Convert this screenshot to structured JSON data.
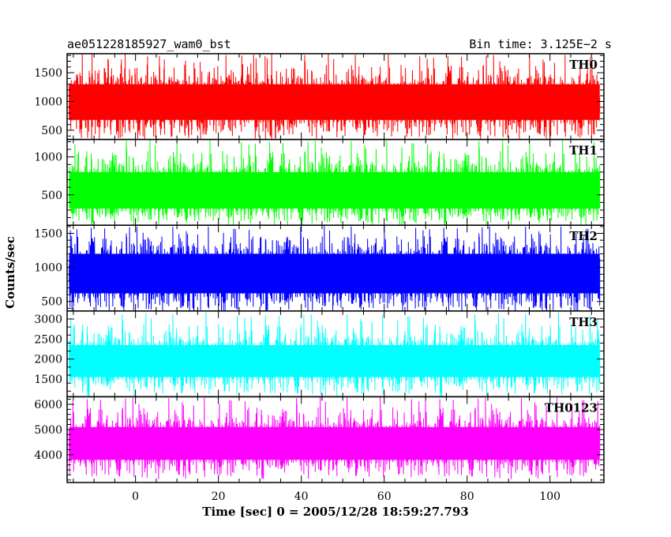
{
  "chart_data": {
    "type": "line",
    "title_left": "ae051228185927_wam0_bst",
    "title_right": "Bin time: 3.125E−2 s",
    "xlabel": "Time [sec] 0 = 2005/12/28 18:59:27.793",
    "ylabel": "Counts/sec",
    "xlim": [
      -16.5,
      113
    ],
    "x_data_range": [
      -16,
      112
    ],
    "x_ticks": [
      0,
      20,
      40,
      60,
      80,
      100
    ],
    "x_tick_labels": [
      "0",
      "20",
      "40",
      "60",
      "80",
      "100"
    ],
    "grid": false,
    "panels": [
      {
        "name": "TH0",
        "color": "#ff0000",
        "ylim": [
          340,
          1830
        ],
        "y_ticks": [
          500,
          1000,
          1500
        ],
        "y_tick_labels": [
          "500",
          "1000",
          "1500"
        ],
        "mean": 980,
        "band_low": 680,
        "band_high": 1300,
        "min": 380,
        "max": 1830
      },
      {
        "name": "TH1",
        "color": "#00ff00",
        "ylim": [
          100,
          1230
        ],
        "y_ticks": [
          500,
          1000
        ],
        "y_tick_labels": [
          "500",
          "1000"
        ],
        "mean": 560,
        "band_low": 320,
        "band_high": 800,
        "min": 150,
        "max": 1230
      },
      {
        "name": "TH2",
        "color": "#0000ff",
        "ylim": [
          360,
          1620
        ],
        "y_ticks": [
          500,
          1000,
          1500
        ],
        "y_tick_labels": [
          "500",
          "1000",
          "1500"
        ],
        "mean": 900,
        "band_low": 620,
        "band_high": 1200,
        "min": 390,
        "max": 1620
      },
      {
        "name": "TH3",
        "color": "#00ffff",
        "ylim": [
          1060,
          3200
        ],
        "y_ticks": [
          1500,
          2000,
          2500,
          3000
        ],
        "y_tick_labels": [
          "1500",
          "2000",
          "2500",
          "3000"
        ],
        "mean": 1950,
        "band_low": 1550,
        "band_high": 2350,
        "min": 1110,
        "max": 3150
      },
      {
        "name": "TH0123",
        "color": "#ff00ff",
        "ylim": [
          2900,
          6300
        ],
        "y_ticks": [
          4000,
          5000,
          6000
        ],
        "y_tick_labels": [
          "4000",
          "5000",
          "6000"
        ],
        "mean": 4450,
        "band_low": 3800,
        "band_high": 5100,
        "min": 3100,
        "max": 6300
      }
    ]
  }
}
